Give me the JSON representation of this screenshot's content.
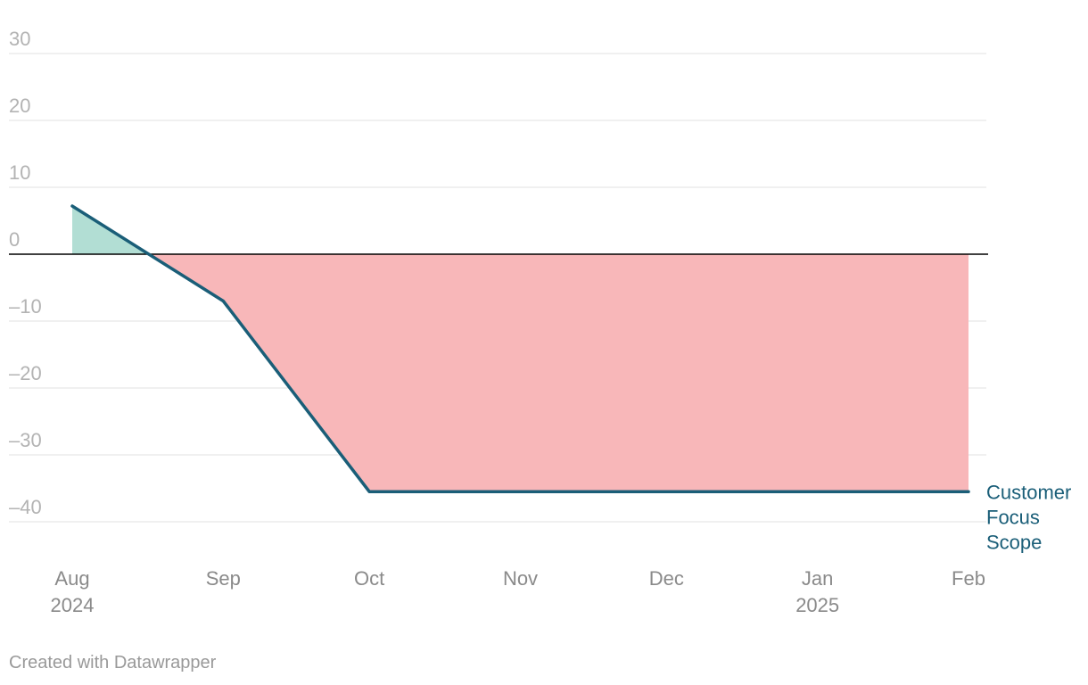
{
  "chart_data": {
    "type": "line",
    "x": [
      "2024-08",
      "2024-09",
      "2024-10",
      "2024-11",
      "2024-12",
      "2025-01",
      "2025-02"
    ],
    "x_tick_labels": [
      {
        "month": "Aug",
        "year": "2024"
      },
      {
        "month": "Sep",
        "year": ""
      },
      {
        "month": "Oct",
        "year": ""
      },
      {
        "month": "Nov",
        "year": ""
      },
      {
        "month": "Dec",
        "year": ""
      },
      {
        "month": "Jan",
        "year": "2025"
      },
      {
        "month": "Feb",
        "year": ""
      }
    ],
    "series": [
      {
        "name": "Customer Focus Scope",
        "name_lines": [
          "Customer",
          "Focus",
          "Scope"
        ],
        "points": [
          {
            "x": "2024-08-01",
            "y": 7.2
          },
          {
            "x": "2024-09-01",
            "y": -7
          },
          {
            "x": "2024-10-01",
            "y": -35.5
          },
          {
            "x": "2025-02-01",
            "y": -35.5
          }
        ]
      }
    ],
    "ylim": [
      -45,
      33
    ],
    "y_ticks": [
      30,
      20,
      10,
      0,
      -10,
      -20,
      -30,
      -40
    ],
    "y_tick_labels": [
      "30",
      "20",
      "10",
      "0",
      "–10",
      "–20",
      "–30",
      "–40"
    ],
    "title": "",
    "xlabel": "",
    "ylabel": "",
    "grid": true,
    "baseline": 0,
    "colors": {
      "line": "#1a5e78",
      "positive_fill": "#b2ded4",
      "negative_fill": "#f8b7b9",
      "grid": "#e2e2e2",
      "zero_line": "#000000"
    }
  },
  "footer": {
    "credit": "Created with Datawrapper"
  }
}
